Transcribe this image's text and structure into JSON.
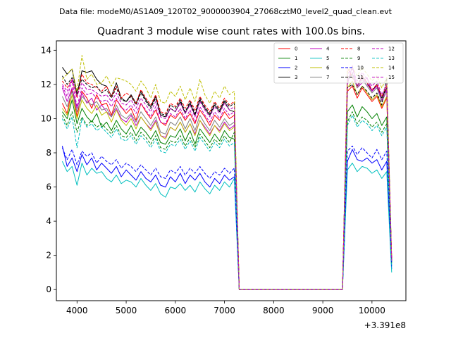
{
  "chart_data": {
    "type": "line",
    "suptitle": "Data file: modeM0/AS1A09_120T02_9000003904_27068cztM0_level2_quad_clean.evt",
    "title": "Quadrant 3 module wise count rates with 100.0s bins.",
    "xlabel": "",
    "ylabel": "",
    "x_offset_label": "+3.391e8",
    "xlim": [
      3580,
      10690
    ],
    "ylim": [
      -0.65,
      14.55
    ],
    "x_ticks": [
      4000,
      5000,
      6000,
      7000,
      8000,
      9000,
      10000
    ],
    "y_ticks": [
      0,
      2,
      4,
      6,
      8,
      10,
      12,
      14
    ],
    "legend_position": "upper-right",
    "legend_columns": 4,
    "x": [
      3700,
      3800,
      3900,
      4000,
      4100,
      4200,
      4300,
      4400,
      4500,
      4600,
      4700,
      4800,
      4900,
      5000,
      5100,
      5200,
      5300,
      5400,
      5500,
      5600,
      5700,
      5800,
      5900,
      6000,
      6100,
      6200,
      6300,
      6400,
      6500,
      6600,
      6700,
      6800,
      6900,
      7000,
      7100,
      7200,
      7300,
      9400,
      9500,
      9600,
      9700,
      9800,
      9900,
      10000,
      10100,
      10200,
      10300,
      10400
    ],
    "series": [
      {
        "name": "0",
        "color": "#ff0000",
        "dash": false,
        "values": [
          10.9,
          10.3,
          11.8,
          10.1,
          11.6,
          11.2,
          10.6,
          11.4,
          10.8,
          10.9,
          10.2,
          11.1,
          10.7,
          10.3,
          10.6,
          9.9,
          10.9,
          10.4,
          10.0,
          10.5,
          9.8,
          9.6,
          10.2,
          10.0,
          10.4,
          9.9,
          10.3,
          9.7,
          10.5,
          10.1,
          9.6,
          10.2,
          9.9,
          10.4,
          10.0,
          10.2,
          0.0,
          0.0,
          11.6,
          11.9,
          11.2,
          11.8,
          11.4,
          11.0,
          11.3,
          10.6,
          11.2,
          1.8
        ]
      },
      {
        "name": "1",
        "color": "#008000",
        "dash": false,
        "values": [
          10.4,
          10.0,
          11.1,
          9.7,
          10.6,
          10.1,
          9.8,
          10.3,
          9.5,
          9.8,
          9.3,
          9.9,
          9.4,
          9.1,
          9.6,
          9.0,
          9.5,
          9.2,
          8.8,
          9.3,
          8.6,
          8.5,
          9.0,
          8.9,
          9.4,
          8.7,
          9.3,
          8.5,
          9.4,
          9.0,
          8.6,
          9.1,
          8.7,
          9.3,
          8.9,
          8.8,
          0.0,
          0.0,
          10.4,
          10.8,
          10.1,
          10.7,
          10.4,
          10.0,
          10.3,
          9.6,
          10.1,
          1.6
        ]
      },
      {
        "name": "2",
        "color": "#0000ff",
        "dash": false,
        "values": [
          8.4,
          7.2,
          7.7,
          6.9,
          7.9,
          7.3,
          7.7,
          7.0,
          7.4,
          7.1,
          6.8,
          7.2,
          6.6,
          7.0,
          6.7,
          6.4,
          6.9,
          6.5,
          6.3,
          6.7,
          6.1,
          6.0,
          6.6,
          6.3,
          6.8,
          6.2,
          6.7,
          6.4,
          6.8,
          6.3,
          6.0,
          6.5,
          6.2,
          6.7,
          6.4,
          6.6,
          0.0,
          0.0,
          7.5,
          8.2,
          7.6,
          7.5,
          7.7,
          7.4,
          7.6,
          7.0,
          7.5,
          1.2
        ]
      },
      {
        "name": "3",
        "color": "#000000",
        "dash": false,
        "values": [
          13.0,
          12.6,
          12.9,
          11.4,
          12.8,
          12.7,
          12.8,
          12.3,
          12.0,
          11.9,
          11.3,
          12.1,
          11.2,
          11.0,
          11.4,
          10.9,
          11.6,
          11.1,
          10.7,
          11.3,
          10.2,
          10.1,
          10.6,
          10.4,
          11.0,
          10.3,
          10.9,
          10.2,
          11.1,
          10.6,
          10.2,
          10.8,
          10.4,
          11.0,
          10.5,
          10.4,
          0.0,
          0.0,
          12.4,
          12.6,
          11.9,
          12.5,
          12.1,
          11.6,
          12.0,
          11.2,
          11.8,
          1.7
        ]
      },
      {
        "name": "4",
        "color": "#bf00bf",
        "dash": false,
        "values": [
          11.8,
          11.0,
          11.8,
          10.6,
          11.5,
          10.9,
          11.2,
          10.5,
          10.8,
          10.4,
          10.1,
          10.6,
          10.0,
          9.8,
          10.2,
          9.6,
          10.1,
          9.7,
          9.4,
          9.9,
          9.0,
          8.9,
          9.5,
          9.3,
          9.8,
          9.2,
          9.7,
          9.1,
          9.9,
          9.5,
          9.1,
          9.6,
          9.3,
          9.8,
          9.4,
          9.6,
          0.0,
          0.0,
          12.0,
          13.1,
          11.8,
          12.1,
          12.4,
          11.6,
          11.9,
          11.0,
          11.6,
          1.8
        ]
      },
      {
        "name": "5",
        "color": "#00bfbf",
        "dash": false,
        "values": [
          7.5,
          6.9,
          7.2,
          6.1,
          7.4,
          6.7,
          7.1,
          6.8,
          6.9,
          6.5,
          6.3,
          6.7,
          6.2,
          6.4,
          6.3,
          6.0,
          6.5,
          6.1,
          5.8,
          6.2,
          5.6,
          5.4,
          6.0,
          5.9,
          6.2,
          5.8,
          6.1,
          5.7,
          6.3,
          5.9,
          5.6,
          6.1,
          5.8,
          6.3,
          6.0,
          6.5,
          0.0,
          0.0,
          7.0,
          7.4,
          6.9,
          7.2,
          7.1,
          6.8,
          7.0,
          6.5,
          6.9,
          1.0
        ]
      },
      {
        "name": "6",
        "color": "#bfbf00",
        "dash": false,
        "values": [
          10.6,
          10.2,
          11.4,
          10.0,
          11.1,
          10.6,
          10.3,
          10.8,
          10.2,
          10.4,
          9.8,
          10.5,
          9.9,
          9.6,
          10.0,
          9.4,
          10.1,
          9.7,
          9.3,
          9.8,
          9.0,
          8.8,
          9.5,
          9.3,
          9.8,
          9.2,
          9.7,
          9.0,
          9.9,
          9.4,
          9.0,
          9.6,
          9.2,
          9.7,
          9.3,
          9.5,
          0.0,
          0.0,
          11.8,
          12.2,
          11.4,
          11.9,
          11.5,
          11.1,
          11.4,
          10.7,
          11.3,
          1.7
        ]
      },
      {
        "name": "7",
        "color": "#808080",
        "dash": false,
        "values": [
          11.3,
          10.7,
          11.6,
          10.4,
          11.3,
          11.0,
          10.8,
          11.0,
          10.5,
          10.6,
          10.1,
          10.8,
          10.2,
          10.0,
          10.3,
          9.8,
          10.4,
          10.0,
          9.6,
          10.1,
          9.2,
          9.1,
          9.8,
          9.6,
          10.1,
          9.4,
          10.0,
          9.3,
          10.2,
          9.7,
          9.3,
          9.9,
          9.5,
          10.0,
          9.6,
          9.8,
          0.0,
          0.0,
          12.2,
          12.6,
          11.8,
          12.3,
          11.9,
          11.5,
          11.8,
          11.0,
          11.6,
          1.7
        ]
      },
      {
        "name": "8",
        "color": "#ff0000",
        "dash": true,
        "values": [
          12.2,
          11.8,
          12.3,
          11.2,
          12.6,
          12.1,
          12.0,
          11.8,
          11.6,
          11.9,
          11.3,
          11.9,
          11.2,
          11.5,
          11.3,
          10.9,
          11.7,
          11.2,
          10.8,
          11.4,
          10.4,
          10.3,
          10.9,
          10.7,
          11.2,
          10.6,
          11.1,
          10.5,
          11.3,
          10.8,
          10.4,
          11.0,
          10.6,
          11.2,
          10.8,
          11.0,
          0.0,
          0.0,
          13.0,
          12.4,
          11.9,
          12.5,
          12.1,
          11.7,
          12.0,
          11.3,
          11.9,
          1.8
        ]
      },
      {
        "name": "9",
        "color": "#008000",
        "dash": true,
        "values": [
          10.2,
          9.6,
          10.4,
          9.2,
          10.1,
          9.6,
          9.9,
          9.5,
          9.7,
          9.4,
          9.1,
          9.6,
          9.0,
          8.9,
          9.2,
          8.7,
          9.2,
          8.9,
          8.5,
          9.0,
          8.3,
          8.2,
          8.7,
          8.6,
          9.0,
          8.4,
          8.9,
          8.3,
          9.1,
          8.7,
          8.3,
          8.8,
          8.5,
          9.0,
          8.6,
          9.2,
          0.0,
          0.0,
          9.8,
          10.4,
          9.7,
          10.1,
          9.9,
          9.5,
          9.8,
          9.2,
          9.7,
          1.5
        ]
      },
      {
        "name": "10",
        "color": "#0000ff",
        "dash": true,
        "values": [
          8.3,
          7.6,
          8.2,
          7.3,
          8.1,
          7.8,
          8.0,
          7.4,
          7.8,
          7.5,
          7.3,
          7.6,
          7.1,
          7.4,
          7.2,
          6.9,
          7.3,
          7.0,
          6.7,
          7.1,
          6.6,
          6.5,
          7.0,
          6.8,
          7.2,
          6.7,
          7.1,
          6.8,
          7.2,
          6.8,
          6.5,
          6.9,
          6.7,
          7.1,
          6.8,
          7.1,
          0.0,
          0.0,
          8.1,
          8.4,
          7.9,
          8.3,
          8.0,
          7.7,
          8.2,
          7.6,
          8.1,
          1.3
        ]
      },
      {
        "name": "11",
        "color": "#000000",
        "dash": true,
        "values": [
          12.5,
          12.0,
          12.4,
          11.6,
          12.3,
          12.0,
          11.8,
          11.9,
          11.5,
          11.7,
          11.2,
          11.8,
          11.1,
          11.0,
          11.3,
          10.8,
          11.5,
          11.0,
          10.6,
          11.2,
          10.3,
          10.2,
          10.8,
          10.6,
          11.1,
          10.4,
          11.0,
          10.3,
          11.2,
          10.7,
          10.3,
          10.9,
          10.5,
          11.1,
          10.7,
          10.9,
          0.0,
          0.0,
          11.8,
          12.0,
          11.4,
          11.9,
          11.6,
          11.2,
          11.5,
          10.8,
          12.4,
          1.7
        ]
      },
      {
        "name": "12",
        "color": "#bf00bf",
        "dash": true,
        "values": [
          12.0,
          11.6,
          12.3,
          11.3,
          12.1,
          11.7,
          11.7,
          11.5,
          11.3,
          11.4,
          11.0,
          11.5,
          10.9,
          10.8,
          11.1,
          10.6,
          11.2,
          10.8,
          10.4,
          11.0,
          10.1,
          10.0,
          10.6,
          10.4,
          10.9,
          10.3,
          10.8,
          10.1,
          11.0,
          10.5,
          10.1,
          10.7,
          10.3,
          10.9,
          10.5,
          10.7,
          0.0,
          0.0,
          12.6,
          12.9,
          12.2,
          12.7,
          12.3,
          11.9,
          12.2,
          11.4,
          12.0,
          1.8
        ]
      },
      {
        "name": "13",
        "color": "#00bfbf",
        "dash": true,
        "values": [
          10.0,
          9.4,
          10.1,
          8.3,
          10.0,
          9.5,
          9.7,
          9.3,
          9.5,
          9.2,
          8.9,
          9.4,
          8.8,
          8.7,
          9.0,
          8.5,
          9.0,
          8.7,
          8.3,
          8.8,
          8.1,
          8.0,
          8.5,
          8.4,
          8.8,
          8.2,
          8.7,
          8.1,
          8.9,
          8.5,
          8.1,
          8.6,
          8.3,
          8.8,
          8.4,
          8.6,
          0.0,
          0.0,
          9.6,
          10.2,
          9.5,
          9.9,
          9.7,
          9.3,
          9.6,
          9.0,
          9.5,
          1.4
        ]
      },
      {
        "name": "14",
        "color": "#bfbf00",
        "dash": true,
        "values": [
          12.3,
          12.6,
          12.9,
          11.6,
          13.7,
          12.3,
          12.6,
          12.0,
          12.1,
          12.5,
          11.9,
          12.4,
          12.3,
          12.2,
          12.0,
          11.6,
          12.2,
          11.8,
          11.2,
          12.0,
          11.0,
          10.9,
          11.6,
          11.3,
          11.9,
          11.1,
          11.8,
          11.0,
          12.3,
          11.4,
          10.9,
          11.6,
          11.2,
          11.9,
          11.4,
          11.6,
          0.0,
          0.0,
          12.8,
          13.0,
          12.5,
          13.0,
          12.6,
          12.2,
          12.5,
          11.8,
          12.4,
          1.9
        ]
      },
      {
        "name": "15",
        "color": "#bf00bf",
        "dash": true,
        "values": [
          11.9,
          11.3,
          12.2,
          10.7,
          11.8,
          11.4,
          11.5,
          11.2,
          11.0,
          11.1,
          10.7,
          11.2,
          10.6,
          10.5,
          10.8,
          10.3,
          10.9,
          10.5,
          10.1,
          10.7,
          9.8,
          9.7,
          10.3,
          10.1,
          10.6,
          10.0,
          10.5,
          9.8,
          10.7,
          10.2,
          9.8,
          10.4,
          10.0,
          10.6,
          10.2,
          10.4,
          0.0,
          0.0,
          12.3,
          12.7,
          11.9,
          12.4,
          12.0,
          11.6,
          11.9,
          11.1,
          11.7,
          1.7
        ]
      }
    ]
  }
}
